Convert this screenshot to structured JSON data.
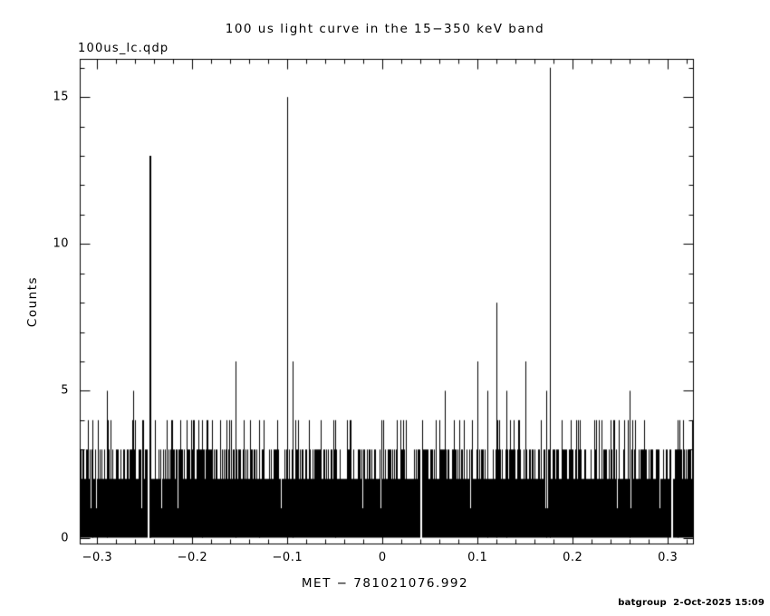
{
  "header": {
    "filename_label": "100us_lc.qdp",
    "title": "100 us light curve in the 15−350 keV band"
  },
  "footer": {
    "credit": "batgroup  2-Oct-2025 15:09"
  },
  "chart_data": {
    "type": "line",
    "style": "impulse-histogram",
    "title": "100 us light curve in the 15−350 keV band",
    "xlabel": "MET − 781021076.992",
    "ylabel": "Counts",
    "xlim": [
      -0.3185,
      0.3265
    ],
    "ylim": [
      -0.2,
      16.3
    ],
    "x_major_ticks": [
      -0.3,
      -0.2,
      -0.1,
      0,
      0.1,
      0.2,
      0.3
    ],
    "x_tick_labels": [
      "−0.3",
      "−0.2",
      "−0.1",
      "0",
      "0.1",
      "0.2",
      "0.3"
    ],
    "x_minor_step": 0.02,
    "y_major_ticks": [
      0,
      5,
      10,
      15
    ],
    "y_tick_labels": [
      "0",
      "5",
      "10",
      "15"
    ],
    "y_minor_step": 1,
    "bin_width": 0.0001,
    "background_distribution": {
      "values": [
        0,
        1,
        2,
        3,
        4,
        5,
        6
      ],
      "cumulative": [
        0.3,
        0.66,
        0.915,
        0.9865,
        0.9985,
        0.9998,
        1.0
      ]
    },
    "noise_seed": 20251002,
    "peaks": [
      {
        "x": -0.305,
        "y": 4
      },
      {
        "x": -0.29,
        "y": 5
      },
      {
        "x": -0.245,
        "y": 13
      },
      {
        "x": -0.19,
        "y": 4
      },
      {
        "x": -0.155,
        "y": 6
      },
      {
        "x": -0.13,
        "y": 4
      },
      {
        "x": -0.1,
        "y": 15
      },
      {
        "x": -0.095,
        "y": 6
      },
      {
        "x": -0.05,
        "y": 4
      },
      {
        "x": 0.1,
        "y": 6
      },
      {
        "x": 0.11,
        "y": 5
      },
      {
        "x": 0.12,
        "y": 8
      },
      {
        "x": 0.13,
        "y": 5
      },
      {
        "x": 0.172,
        "y": 5
      },
      {
        "x": 0.176,
        "y": 16
      },
      {
        "x": 0.26,
        "y": 5
      },
      {
        "x": 0.31,
        "y": 4
      }
    ],
    "gaps": [
      -0.2475,
      0.04,
      0.3035
    ],
    "plot_color": "#000000",
    "background_color": "#ffffff"
  }
}
